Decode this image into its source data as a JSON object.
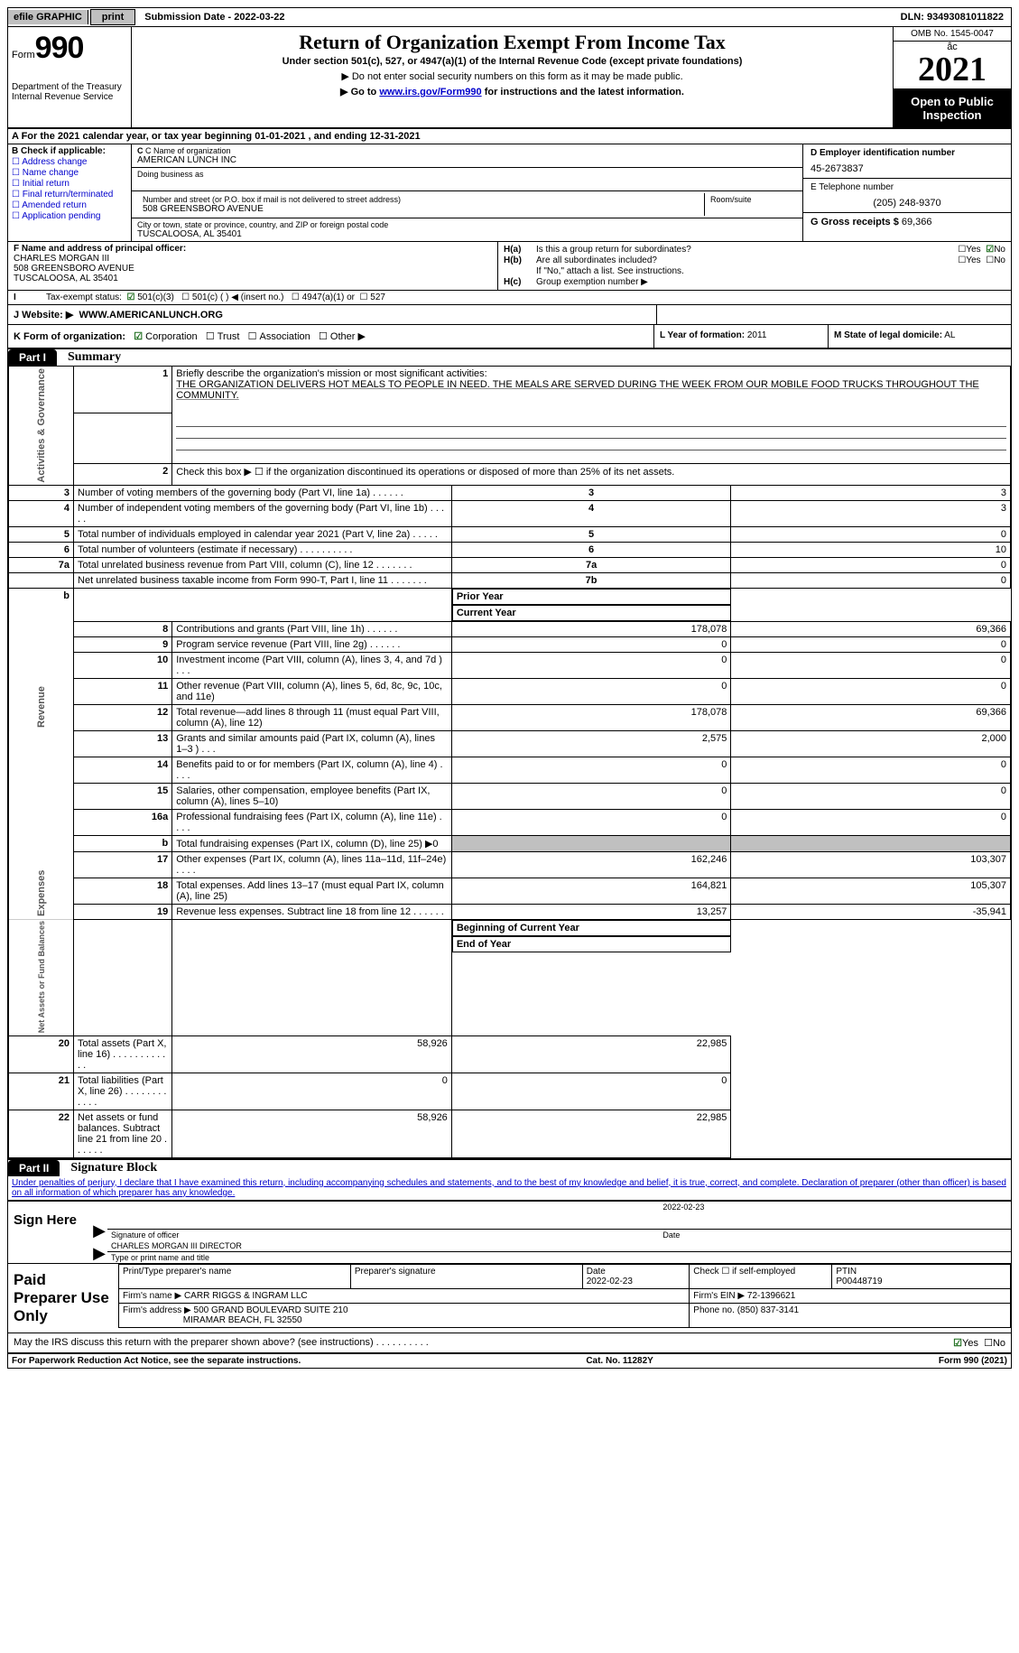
{
  "topbar": {
    "efile_label": "efile GRAPHIC",
    "print_btn": "print",
    "submission_label": "Submission Date - 2022-03-22",
    "dln_label": "DLN: 93493081011822"
  },
  "header": {
    "form_prefix": "Form",
    "form_number": "990",
    "dept1": "Department of the Treasury",
    "dept2": "Internal Revenue Service",
    "title": "Return of Organization Exempt From Income Tax",
    "subtitle": "Under section 501(c), 527, or 4947(a)(1) of the Internal Revenue Code (except private foundations)",
    "note1": "▶ Do not enter social security numbers on this form as it may be made public.",
    "note2_pre": "▶ Go to ",
    "note2_link": "www.irs.gov/Form990",
    "note2_post": " for instructions and the latest information.",
    "omb": "OMB No. 1545-0047",
    "year": "2021",
    "open": "Open to Public Inspection"
  },
  "lineA": "A For the 2021 calendar year, or tax year beginning 01-01-2021    , and ending 12-31-2021",
  "colB": {
    "hd": "B Check if applicable:",
    "opts": [
      "Address change",
      "Name change",
      "Initial return",
      "Final return/terminated",
      "Amended return",
      "Application pending"
    ]
  },
  "colC": {
    "name_lbl": "C Name of organization",
    "name_val": "AMERICAN LUNCH INC",
    "dba_lbl": "Doing business as",
    "addr_lbl": "Number and street (or P.O. box if mail is not delivered to street address)",
    "room_lbl": "Room/suite",
    "addr_val": "508 GREENSBORO AVENUE",
    "city_lbl": "City or town, state or province, country, and ZIP or foreign postal code",
    "city_val": "TUSCALOOSA, AL  35401"
  },
  "colD": {
    "ein_lbl": "D Employer identification number",
    "ein_val": "45-2673837",
    "tel_lbl": "E Telephone number",
    "tel_val": "(205) 248-9370",
    "gross_lbl": "G Gross receipts $",
    "gross_val": "69,366"
  },
  "F": {
    "lbl": "F Name and address of principal officer:",
    "l1": "CHARLES MORGAN III",
    "l2": "508 GREENSBORO AVENUE",
    "l3": "TUSCALOOSA, AL  35401"
  },
  "H": {
    "a_lbl": "Is this a group return for subordinates?",
    "b_lbl": "Are all subordinates included?",
    "b_note": "If \"No,\" attach a list. See instructions.",
    "c_lbl": "Group exemption number ▶",
    "yes": "Yes",
    "no": "No"
  },
  "I": {
    "lbl": "Tax-exempt status:",
    "o1": "501(c)(3)",
    "o2": "501(c) (  ) ◀ (insert no.)",
    "o3": "4947(a)(1) or",
    "o4": "527"
  },
  "J": {
    "lbl": "J   Website: ▶",
    "val": "WWW.AMERICANLUNCH.ORG"
  },
  "K": {
    "lbl": "K Form of organization:",
    "o1": "Corporation",
    "o2": "Trust",
    "o3": "Association",
    "o4": "Other ▶",
    "L_lbl": "L Year of formation:",
    "L_val": "2011",
    "M_lbl": "M State of legal domicile:",
    "M_val": "AL"
  },
  "part1": {
    "tab": "Part I",
    "title": "Summary",
    "line1_lbl": "Briefly describe the organization's mission or most significant activities:",
    "line1_val": "THE ORGANIZATION DELIVERS HOT MEALS TO PEOPLE IN NEED. THE MEALS ARE SERVED DURING THE WEEK FROM OUR MOBILE FOOD TRUCKS THROUGHOUT THE COMMUNITY.",
    "line2": "Check this box ▶ ☐  if the organization discontinued its operations or disposed of more than 25% of its net assets.",
    "rows_gov": [
      {
        "n": "3",
        "t": "Number of voting members of the governing body (Part VI, line 1a)   .    .    .    .    .    .",
        "rn": "3",
        "v": "3"
      },
      {
        "n": "4",
        "t": "Number of independent voting members of the governing body (Part VI, line 1b)   .    .    .    .    .",
        "rn": "4",
        "v": "3"
      },
      {
        "n": "5",
        "t": "Total number of individuals employed in calendar year 2021 (Part V, line 2a)   .    .    .    .    .",
        "rn": "5",
        "v": "0"
      },
      {
        "n": "6",
        "t": "Total number of volunteers (estimate if necessary)    .    .    .    .    .    .    .    .    .    .",
        "rn": "6",
        "v": "10"
      },
      {
        "n": "7a",
        "t": "Total unrelated business revenue from Part VIII, column (C), line 12    .    .    .    .    .    .    .",
        "rn": "7a",
        "v": "0"
      },
      {
        "n": "",
        "t": "Net unrelated business taxable income from Form 990-T, Part I, line 11   .    .    .    .    .    .    .",
        "rn": "7b",
        "v": "0"
      }
    ],
    "col_prior": "Prior Year",
    "col_curr": "Current Year",
    "rows_rev": [
      {
        "n": "8",
        "t": "Contributions and grants (Part VIII, line 1h)    .    .    .    .    .    .",
        "p": "178,078",
        "c": "69,366"
      },
      {
        "n": "9",
        "t": "Program service revenue (Part VIII, line 2g)    .    .    .    .    .    .",
        "p": "0",
        "c": "0"
      },
      {
        "n": "10",
        "t": "Investment income (Part VIII, column (A), lines 3, 4, and 7d )    .    .    .",
        "p": "0",
        "c": "0"
      },
      {
        "n": "11",
        "t": "Other revenue (Part VIII, column (A), lines 5, 6d, 8c, 9c, 10c, and 11e)",
        "p": "0",
        "c": "0"
      },
      {
        "n": "12",
        "t": "Total revenue—add lines 8 through 11 (must equal Part VIII, column (A), line 12)",
        "p": "178,078",
        "c": "69,366"
      }
    ],
    "rows_exp": [
      {
        "n": "13",
        "t": "Grants and similar amounts paid (Part IX, column (A), lines 1–3 )   .    .    .",
        "p": "2,575",
        "c": "2,000"
      },
      {
        "n": "14",
        "t": "Benefits paid to or for members (Part IX, column (A), line 4)   .    .    .    .",
        "p": "0",
        "c": "0"
      },
      {
        "n": "15",
        "t": "Salaries, other compensation, employee benefits (Part IX, column (A), lines 5–10)",
        "p": "0",
        "c": "0"
      },
      {
        "n": "16a",
        "t": "Professional fundraising fees (Part IX, column (A), line 11e)   .    .    .    .",
        "p": "0",
        "c": "0"
      },
      {
        "n": "b",
        "t": "Total fundraising expenses (Part IX, column (D), line 25) ▶0",
        "p": "",
        "c": "",
        "shade": true
      },
      {
        "n": "17",
        "t": "Other expenses (Part IX, column (A), lines 11a–11d, 11f–24e)   .    .    .    .",
        "p": "162,246",
        "c": "103,307"
      },
      {
        "n": "18",
        "t": "Total expenses. Add lines 13–17 (must equal Part IX, column (A), line 25)",
        "p": "164,821",
        "c": "105,307"
      },
      {
        "n": "19",
        "t": "Revenue less expenses. Subtract line 18 from line 12   .    .    .    .    .    .",
        "p": "13,257",
        "c": "-35,941"
      }
    ],
    "col_beg": "Beginning of Current Year",
    "col_end": "End of Year",
    "rows_net": [
      {
        "n": "20",
        "t": "Total assets (Part X, line 16)   .    .    .    .    .    .    .    .    .    .    .    .",
        "p": "58,926",
        "c": "22,985"
      },
      {
        "n": "21",
        "t": "Total liabilities (Part X, line 26)   .    .    .    .    .    .    .    .    .    .    .    .",
        "p": "0",
        "c": "0"
      },
      {
        "n": "22",
        "t": "Net assets or fund balances. Subtract line 21 from line 20   .    .    .    .    .    .",
        "p": "58,926",
        "c": "22,985"
      }
    ],
    "vlabels": {
      "gov": "Activities & Governance",
      "rev": "Revenue",
      "exp": "Expenses",
      "net": "Net Assets or Fund Balances"
    }
  },
  "part2": {
    "tab": "Part II",
    "title": "Signature Block",
    "decl": "Under penalties of perjury, I declare that I have examined this return, including accompanying schedules and statements, and to the best of my knowledge and belief, it is true, correct, and complete. Declaration of preparer (other than officer) is based on all information of which preparer has any knowledge."
  },
  "sign": {
    "hd": "Sign Here",
    "sig_lbl": "Signature of officer",
    "date_lbl": "Date",
    "date_val": "2022-02-23",
    "name_val": "CHARLES MORGAN III  DIRECTOR",
    "name_lbl": "Type or print name and title"
  },
  "prep": {
    "hd": "Paid Preparer Use Only",
    "h1": "Print/Type preparer's name",
    "h2": "Preparer's signature",
    "h3_lbl": "Date",
    "h3_val": "2022-02-23",
    "h4": "Check ☐ if self-employed",
    "h5_lbl": "PTIN",
    "h5_val": "P00448719",
    "firm_name_lbl": "Firm's name      ▶",
    "firm_name_val": "CARR RIGGS & INGRAM LLC",
    "firm_ein_lbl": "Firm's EIN ▶",
    "firm_ein_val": "72-1396621",
    "firm_addr_lbl": "Firm's address ▶",
    "firm_addr_val1": "500 GRAND BOULEVARD SUITE 210",
    "firm_addr_val2": "MIRAMAR BEACH, FL  32550",
    "phone_lbl": "Phone no.",
    "phone_val": "(850) 837-3141"
  },
  "mayirs": "May the IRS discuss this return with the preparer shown above? (see instructions)   .    .    .    .    .    .    .    .    .    .",
  "footer": {
    "l": "For Paperwork Reduction Act Notice, see the separate instructions.",
    "m": "Cat. No. 11282Y",
    "r": "Form 990 (2021)"
  }
}
